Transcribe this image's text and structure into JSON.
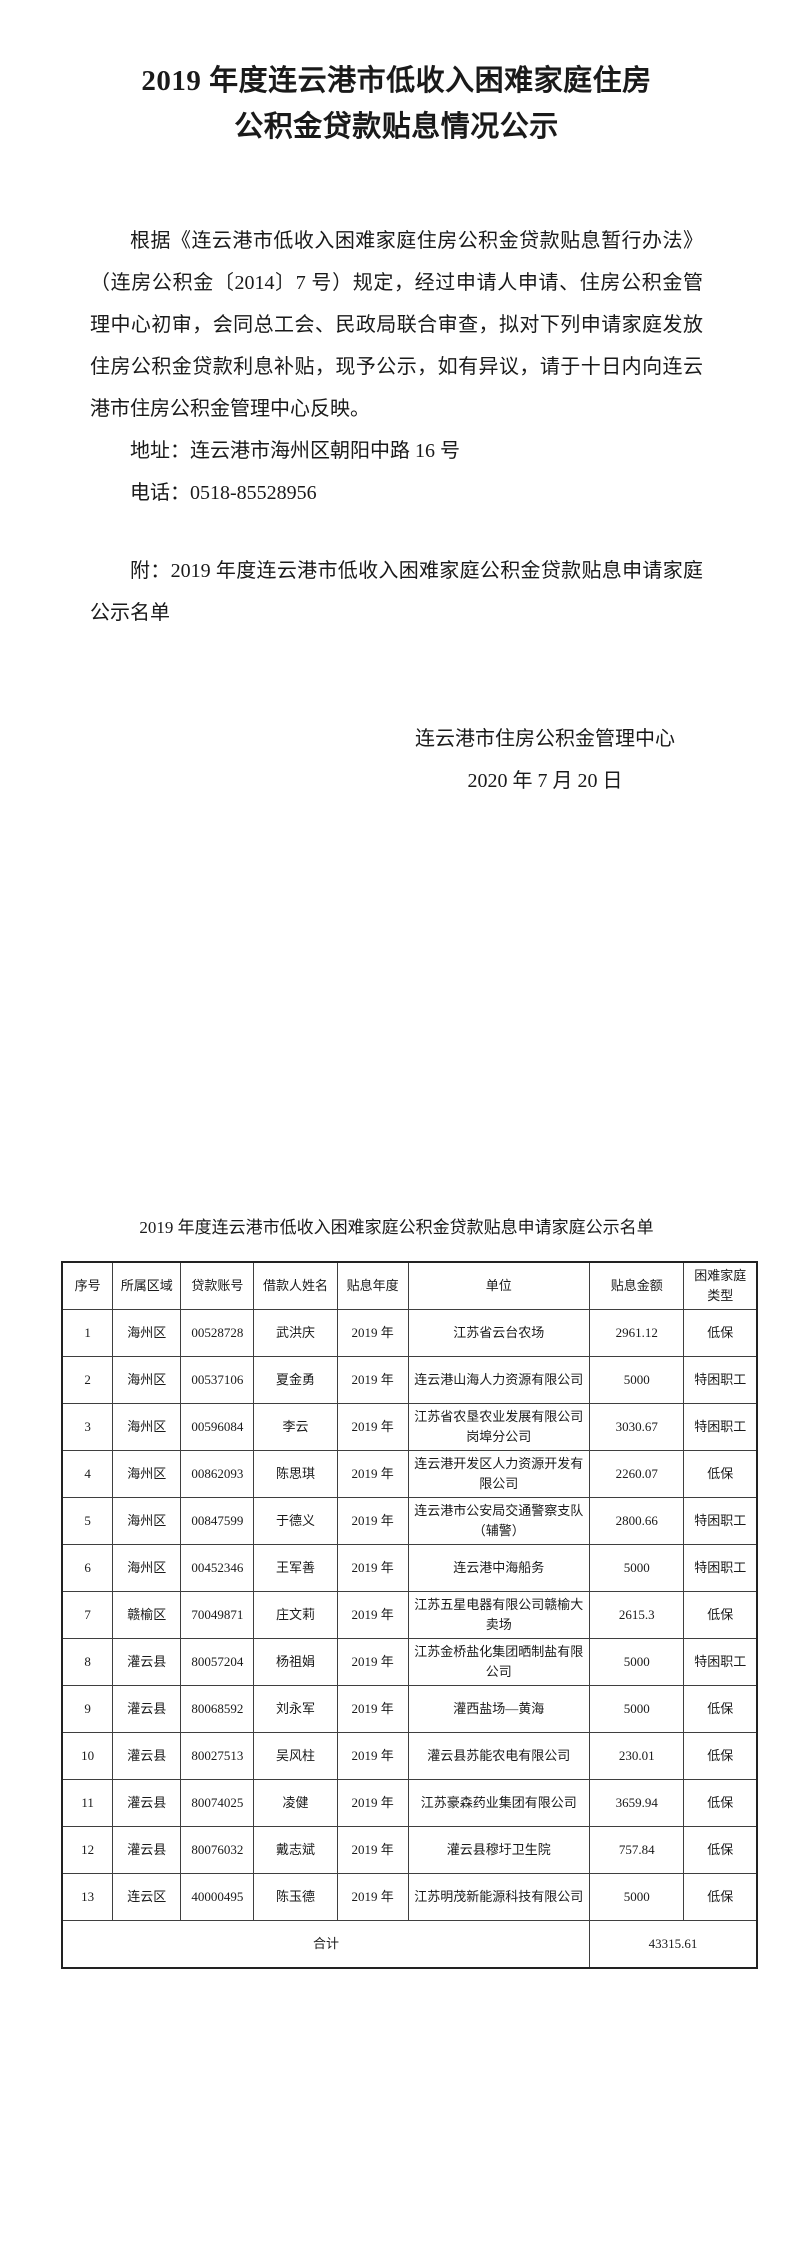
{
  "doc": {
    "title": "2019 年度连云港市低收入困难家庭住房公积金贷款贴息情况公示",
    "paragraph": "根据《连云港市低收入困难家庭住房公积金贷款贴息暂行办法》（连房公积金〔2014〕7 号）规定，经过申请人申请、住房公积金管理中心初审，会同总工会、民政局联合审查，拟对下列申请家庭发放住房公积金贷款利息补贴，现予公示，如有异议，请于十日内向连云港市住房公积金管理中心反映。",
    "address": "地址：连云港市海州区朝阳中路 16 号",
    "phone": "电话：0518-85528956",
    "attachment": "附：2019 年度连云港市低收入困难家庭公积金贷款贴息申请家庭公示名单",
    "signature": "连云港市住房公积金管理中心",
    "date": "2020 年 7 月 20 日"
  },
  "table": {
    "title": "2019 年度连云港市低收入困难家庭公积金贷款贴息申请家庭公示名单",
    "headers": [
      "序号",
      "所属区域",
      "贷款账号",
      "借款人姓名",
      "贴息年度",
      "单位",
      "贴息金额",
      "困难家庭类型"
    ],
    "rows": [
      [
        "1",
        "海州区",
        "00528728",
        "武洪庆",
        "2019 年",
        "江苏省云台农场",
        "2961.12",
        "低保"
      ],
      [
        "2",
        "海州区",
        "00537106",
        "夏金勇",
        "2019 年",
        "连云港山海人力资源有限公司",
        "5000",
        "特困职工"
      ],
      [
        "3",
        "海州区",
        "00596084",
        "李云",
        "2019 年",
        "江苏省农垦农业发展有限公司岗埠分公司",
        "3030.67",
        "特困职工"
      ],
      [
        "4",
        "海州区",
        "00862093",
        "陈思琪",
        "2019 年",
        "连云港开发区人力资源开发有限公司",
        "2260.07",
        "低保"
      ],
      [
        "5",
        "海州区",
        "00847599",
        "于德义",
        "2019 年",
        "连云港市公安局交通警察支队（辅警）",
        "2800.66",
        "特困职工"
      ],
      [
        "6",
        "海州区",
        "00452346",
        "王军善",
        "2019 年",
        "连云港中海船务",
        "5000",
        "特困职工"
      ],
      [
        "7",
        "赣榆区",
        "70049871",
        "庄文莉",
        "2019 年",
        "江苏五星电器有限公司赣榆大卖场",
        "2615.3",
        "低保"
      ],
      [
        "8",
        "灌云县",
        "80057204",
        "杨祖娟",
        "2019 年",
        "江苏金桥盐化集团晒制盐有限公司",
        "5000",
        "特困职工"
      ],
      [
        "9",
        "灌云县",
        "80068592",
        "刘永军",
        "2019 年",
        "灌西盐场—黄海",
        "5000",
        "低保"
      ],
      [
        "10",
        "灌云县",
        "80027513",
        "吴风柱",
        "2019 年",
        "灌云县苏能农电有限公司",
        "230.01",
        "低保"
      ],
      [
        "11",
        "灌云县",
        "80074025",
        "凌健",
        "2019 年",
        "江苏豪森药业集团有限公司",
        "3659.94",
        "低保"
      ],
      [
        "12",
        "灌云县",
        "80076032",
        "戴志斌",
        "2019 年",
        "灌云县穆圩卫生院",
        "757.84",
        "低保"
      ],
      [
        "13",
        "连云区",
        "40000495",
        "陈玉德",
        "2019 年",
        "江苏明茂新能源科技有限公司",
        "5000",
        "低保"
      ]
    ],
    "total_label": "合计",
    "total_amount": "43315.61"
  }
}
